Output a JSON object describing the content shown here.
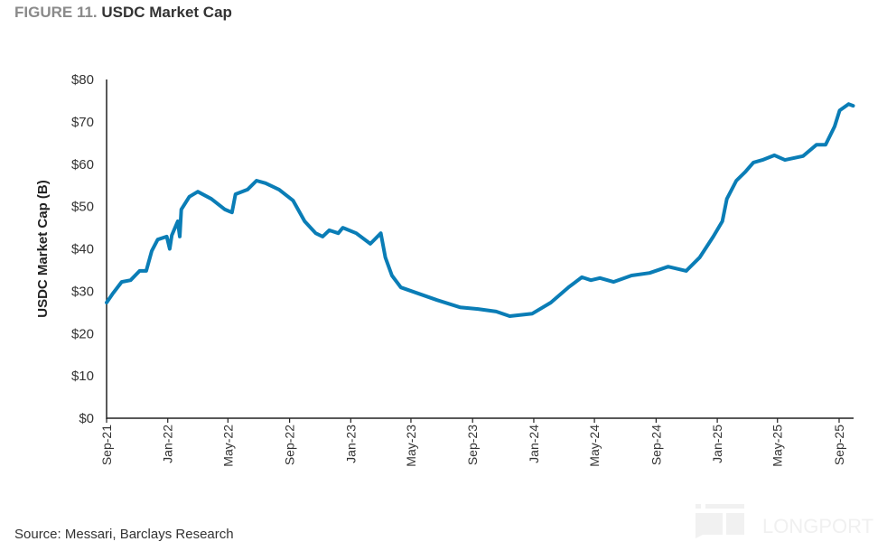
{
  "title": {
    "figure_label": "FIGURE 11.",
    "text": "USDC Market Cap"
  },
  "source": "Source: Messari, Barclays Research",
  "watermark": "LONGPORT",
  "colors": {
    "line": "#0a7db6",
    "axis": "#222222",
    "text": "#333333"
  },
  "chart_data": {
    "type": "line",
    "title": "USDC Market Cap",
    "xlabel": "",
    "ylabel": "USDC Market Cap (B)",
    "ylim": [
      0,
      80
    ],
    "xlim": [
      "2021-09-01",
      "2025-10-01"
    ],
    "yticks": [
      "$0",
      "$10",
      "$20",
      "$30",
      "$40",
      "$50",
      "$60",
      "$70",
      "$80"
    ],
    "ytick_values": [
      0,
      10,
      20,
      30,
      40,
      50,
      60,
      70,
      80
    ],
    "xticks": [
      "Sep-21",
      "Jan-22",
      "May-22",
      "Sep-22",
      "Jan-23",
      "May-23",
      "Sep-23",
      "Jan-24",
      "May-24",
      "Sep-24",
      "Jan-25",
      "May-25",
      "Sep-25"
    ],
    "xtick_dates": [
      "2021-09-01",
      "2022-01-01",
      "2022-05-01",
      "2022-09-01",
      "2023-01-01",
      "2023-05-01",
      "2023-09-01",
      "2024-01-01",
      "2024-05-01",
      "2024-09-01",
      "2025-01-01",
      "2025-05-01",
      "2025-09-01"
    ],
    "grid": false,
    "series": [
      {
        "x": [
          "2021-09-01",
          "2021-09-13",
          "2021-10-01",
          "2021-10-19",
          "2021-11-06",
          "2021-11-19",
          "2021-11-30",
          "2021-12-12",
          "2021-12-30",
          "2022-01-05",
          "2022-01-09",
          "2022-01-21",
          "2022-01-25",
          "2022-01-28",
          "2022-02-13",
          "2022-03-02",
          "2022-03-29",
          "2022-04-25",
          "2022-05-09",
          "2022-05-16",
          "2022-06-09",
          "2022-06-27",
          "2022-07-15",
          "2022-08-11",
          "2022-09-08",
          "2022-10-01",
          "2022-10-23",
          "2022-11-06",
          "2022-11-19",
          "2022-12-07",
          "2022-12-16",
          "2023-01-12",
          "2023-02-09",
          "2023-03-02",
          "2023-03-11",
          "2023-03-24",
          "2023-04-11",
          "2023-05-17",
          "2023-06-22",
          "2023-08-07",
          "2023-09-12",
          "2023-10-18",
          "2023-11-14",
          "2023-12-29",
          "2024-02-04",
          "2024-03-10",
          "2024-04-06",
          "2024-04-24",
          "2024-05-12",
          "2024-06-08",
          "2024-07-14",
          "2024-08-19",
          "2024-09-25",
          "2024-10-31",
          "2024-11-27",
          "2024-12-24",
          "2025-01-11",
          "2025-01-20",
          "2025-02-08",
          "2025-02-26",
          "2025-03-14",
          "2025-04-01",
          "2025-04-25",
          "2025-05-16",
          "2025-06-21",
          "2025-07-18",
          "2025-08-05",
          "2025-08-23",
          "2025-09-02",
          "2025-09-20",
          "2025-09-29"
        ],
        "values": [
          27.3,
          29.4,
          32.2,
          32.6,
          34.8,
          34.8,
          39.5,
          42.2,
          42.9,
          40.0,
          43.2,
          46.5,
          42.9,
          49.3,
          52.3,
          53.5,
          51.8,
          49.3,
          48.6,
          52.9,
          54.0,
          56.1,
          55.5,
          54.0,
          51.4,
          46.5,
          43.7,
          42.9,
          44.4,
          43.7,
          45.0,
          43.7,
          41.2,
          43.7,
          38.0,
          33.7,
          30.9,
          29.4,
          27.9,
          26.2,
          25.8,
          25.2,
          24.1,
          24.7,
          27.3,
          30.9,
          33.3,
          32.6,
          33.1,
          32.2,
          33.7,
          34.3,
          35.8,
          34.8,
          38.0,
          42.9,
          46.5,
          51.8,
          56.1,
          58.2,
          60.4,
          61.0,
          62.1,
          61.0,
          61.9,
          64.6,
          64.6,
          68.9,
          72.7,
          74.2,
          73.8
        ]
      }
    ]
  }
}
